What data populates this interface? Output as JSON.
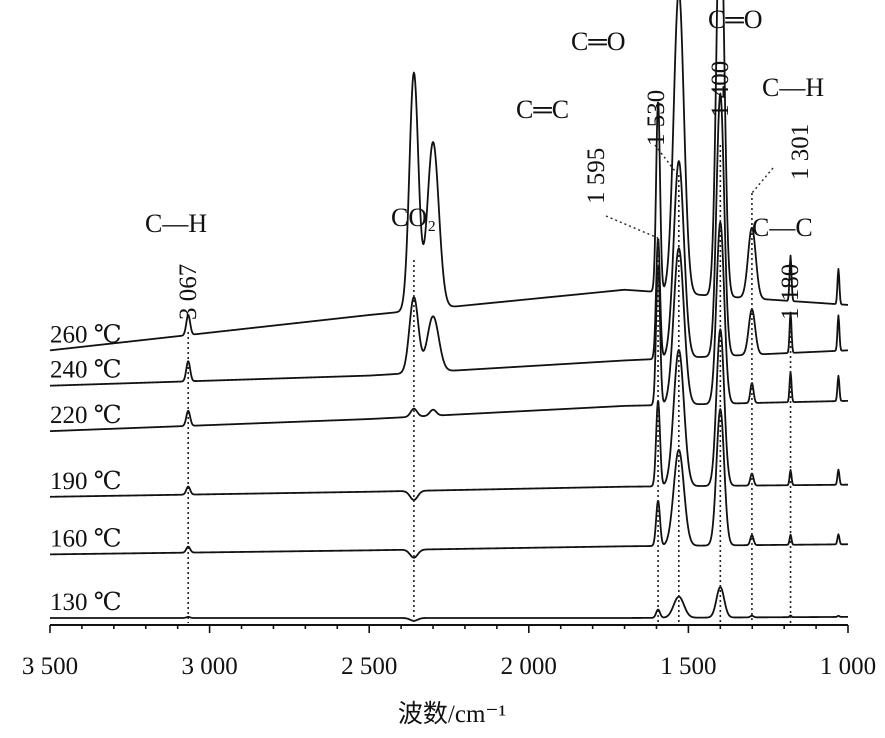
{
  "chart_data": {
    "type": "line",
    "xlabel": "波数/cm⁻¹",
    "ylabel": "",
    "xlim": [
      3500,
      1000
    ],
    "x_reversed": true,
    "x_ticks": [
      3500,
      3000,
      2500,
      2000,
      1500,
      1000
    ],
    "x_tick_labels": [
      "3 500",
      "3 000",
      "2 500",
      "2 000",
      "1 500",
      "1 000"
    ],
    "ylim": [
      0,
      5.6
    ],
    "grid": false,
    "legend": "series labels at left of each trace",
    "series": [
      {
        "name": "130 °C",
        "label": "130 ℃",
        "offset": 0.0,
        "scale": 0.55,
        "baseline": [
          [
            3500,
            0.0
          ],
          [
            2500,
            0.0
          ],
          [
            1700,
            0.0
          ],
          [
            1000,
            0.02
          ]
        ],
        "peaks": [
          [
            3067,
            0.02,
            6
          ],
          [
            2360,
            -0.05,
            12
          ],
          [
            1595,
            0.15,
            6
          ],
          [
            1530,
            0.38,
            16
          ],
          [
            1400,
            0.55,
            12
          ],
          [
            1301,
            0.03,
            5
          ],
          [
            1180,
            0.03,
            3
          ],
          [
            1030,
            0.02,
            3
          ]
        ]
      },
      {
        "name": "160 °C",
        "label": "160 ℃",
        "offset": 0.63,
        "scale": 1.0,
        "baseline": [
          [
            3500,
            0.0
          ],
          [
            2500,
            0.04
          ],
          [
            1700,
            0.08
          ],
          [
            1000,
            0.1
          ]
        ],
        "peaks": [
          [
            3067,
            0.06,
            6
          ],
          [
            2360,
            -0.08,
            12
          ],
          [
            1595,
            0.45,
            6
          ],
          [
            1530,
            0.95,
            16
          ],
          [
            1400,
            1.35,
            12
          ],
          [
            1301,
            0.1,
            5
          ],
          [
            1180,
            0.1,
            3
          ],
          [
            1030,
            0.1,
            3
          ]
        ]
      },
      {
        "name": "190 °C",
        "label": "190 ℃",
        "offset": 1.2,
        "scale": 1.0,
        "baseline": [
          [
            3500,
            0.0
          ],
          [
            2500,
            0.05
          ],
          [
            1700,
            0.1
          ],
          [
            1000,
            0.12
          ]
        ],
        "peaks": [
          [
            3067,
            0.08,
            6
          ],
          [
            2360,
            -0.09,
            12
          ],
          [
            1595,
            0.85,
            6
          ],
          [
            1530,
            1.35,
            16
          ],
          [
            1400,
            1.55,
            12
          ],
          [
            1301,
            0.12,
            5
          ],
          [
            1180,
            0.15,
            3
          ],
          [
            1030,
            0.15,
            3
          ]
        ]
      },
      {
        "name": "220 °C",
        "label": "220 ℃",
        "offset": 1.85,
        "scale": 1.0,
        "baseline": [
          [
            3500,
            0.0
          ],
          [
            2500,
            0.12
          ],
          [
            1700,
            0.25
          ],
          [
            1000,
            0.3
          ]
        ],
        "peaks": [
          [
            3067,
            0.15,
            6
          ],
          [
            2360,
            0.08,
            10
          ],
          [
            2300,
            0.06,
            10
          ],
          [
            1595,
            1.4,
            6
          ],
          [
            1530,
            1.55,
            16
          ],
          [
            1400,
            1.8,
            12
          ],
          [
            1301,
            0.2,
            5
          ],
          [
            1180,
            0.3,
            3
          ],
          [
            1030,
            0.25,
            3
          ]
        ]
      },
      {
        "name": "240 °C",
        "label": "240 ℃",
        "offset": 2.3,
        "scale": 1.0,
        "baseline": [
          [
            3500,
            0.0
          ],
          [
            2500,
            0.1
          ],
          [
            1700,
            0.25
          ],
          [
            1000,
            0.35
          ]
        ],
        "peaks": [
          [
            3067,
            0.2,
            6
          ],
          [
            2360,
            0.75,
            14
          ],
          [
            2300,
            0.55,
            18
          ],
          [
            1595,
            1.2,
            6
          ],
          [
            1530,
            1.95,
            16
          ],
          [
            1400,
            2.6,
            12
          ],
          [
            1301,
            0.45,
            10
          ],
          [
            1180,
            0.4,
            3
          ],
          [
            1030,
            0.35,
            3
          ]
        ]
      },
      {
        "name": "260 °C",
        "label": "260 ℃",
        "offset": 2.65,
        "scale": 1.0,
        "baseline": [
          [
            3500,
            0.0
          ],
          [
            2500,
            0.35
          ],
          [
            1700,
            0.6
          ],
          [
            1000,
            0.45
          ]
        ],
        "peaks": [
          [
            3067,
            0.2,
            6
          ],
          [
            2360,
            2.35,
            14
          ],
          [
            2300,
            1.65,
            18
          ],
          [
            1595,
            1.9,
            6
          ],
          [
            1530,
            3.0,
            16
          ],
          [
            1400,
            4.1,
            12
          ],
          [
            1301,
            0.7,
            12
          ],
          [
            1180,
            0.45,
            3
          ],
          [
            1030,
            0.35,
            3
          ]
        ]
      }
    ],
    "annotations": [
      {
        "wavenumber": 3067,
        "label": "3 067",
        "group": "C—H"
      },
      {
        "wavenumber": 2360,
        "label": "",
        "group": "CO₂"
      },
      {
        "wavenumber": 1595,
        "label": "1 595",
        "group": "C═C"
      },
      {
        "wavenumber": 1530,
        "label": "1 530",
        "group": "C═O"
      },
      {
        "wavenumber": 1400,
        "label": "1 400",
        "group": "C═O"
      },
      {
        "wavenumber": 1301,
        "label": "1 301",
        "group": "C—H"
      },
      {
        "wavenumber": 1180,
        "label": "1 180",
        "group": "C—C"
      }
    ]
  }
}
